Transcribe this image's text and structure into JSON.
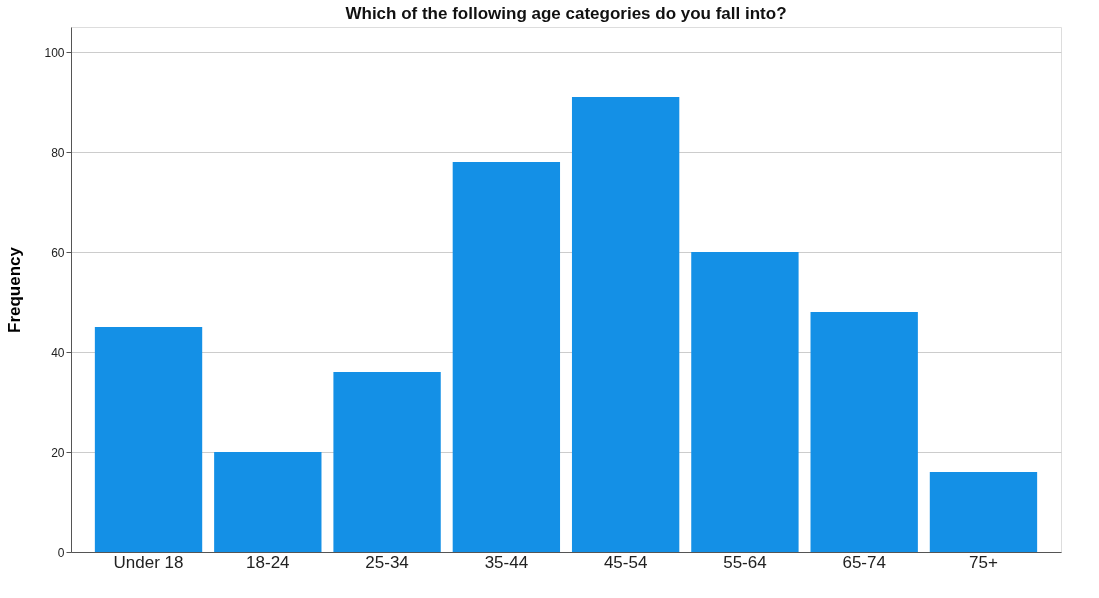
{
  "chart_data": {
    "type": "bar",
    "title": "Which of the following age categories do you fall into?",
    "ylabel": "Frequency",
    "categories": [
      "Under 18",
      "18-24",
      "25-34",
      "35-44",
      "45-54",
      "55-64",
      "65-74",
      "75+"
    ],
    "values": [
      45,
      20,
      36,
      78,
      91,
      60,
      48,
      16
    ],
    "color": "#1490e6",
    "ylim": [
      0,
      105
    ],
    "yticks": [
      0,
      20,
      40,
      60,
      80,
      100
    ],
    "grid": "y"
  }
}
